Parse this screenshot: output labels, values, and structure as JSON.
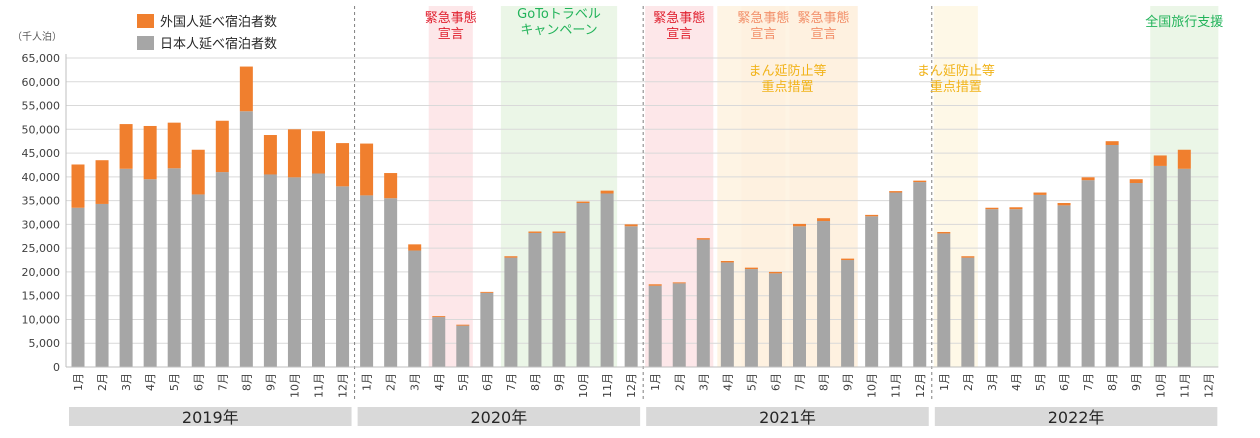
{
  "chart_data": {
    "type": "bar",
    "stacked": true,
    "unit_label": "（千人泊）",
    "ylim": [
      0,
      65000
    ],
    "y_ticks": [
      "0",
      "5,000",
      "10,000",
      "15,000",
      "20,000",
      "25,000",
      "30,000",
      "35,000",
      "40,000",
      "45,000",
      "50,000",
      "55,000",
      "60,000",
      "65,000"
    ],
    "y_tick_values": [
      0,
      5000,
      10000,
      15000,
      20000,
      25000,
      30000,
      35000,
      40000,
      45000,
      50000,
      55000,
      60000,
      65000
    ],
    "grid": true,
    "legend_position": "top-left",
    "legend": [
      {
        "label": "外国人延べ宿泊者数",
        "color": "#F07F2E"
      },
      {
        "label": "日本人延べ宿泊者数",
        "color": "#A6A6A6"
      }
    ],
    "years": [
      {
        "label": "2019年",
        "months": [
          "1月",
          "2月",
          "3月",
          "4月",
          "5月",
          "6月",
          "7月",
          "8月",
          "9月",
          "10月",
          "11月",
          "12月"
        ],
        "japanese": [
          33500,
          34300,
          41700,
          39500,
          41800,
          36300,
          41000,
          53800,
          40500,
          39900,
          40700,
          38000
        ],
        "foreign": [
          9100,
          9200,
          9400,
          11200,
          9600,
          9400,
          10800,
          9400,
          8300,
          10100,
          8900,
          9100
        ]
      },
      {
        "label": "2020年",
        "months": [
          "1月",
          "2月",
          "3月",
          "4月",
          "5月",
          "6月",
          "7月",
          "8月",
          "9月",
          "10月",
          "11月",
          "12月"
        ],
        "japanese": [
          36100,
          35500,
          24500,
          10500,
          8700,
          15600,
          23000,
          28200,
          28200,
          34500,
          36500,
          29600
        ],
        "foreign": [
          10900,
          5300,
          1300,
          200,
          200,
          200,
          300,
          300,
          300,
          300,
          600,
          400
        ]
      },
      {
        "label": "2021年",
        "months": [
          "1月",
          "2月",
          "3月",
          "4月",
          "5月",
          "6月",
          "7月",
          "8月",
          "9月",
          "10月",
          "11月",
          "12月"
        ],
        "japanese": [
          17100,
          17600,
          26800,
          22000,
          20600,
          19700,
          29600,
          30700,
          22500,
          31700,
          36700,
          38900
        ],
        "foreign": [
          300,
          200,
          300,
          300,
          300,
          300,
          500,
          600,
          300,
          300,
          300,
          300
        ]
      },
      {
        "label": "2022年",
        "months": [
          "1月",
          "2月",
          "3月",
          "4月",
          "5月",
          "6月",
          "7月",
          "8月",
          "9月",
          "10月",
          "11月",
          "12月"
        ],
        "japanese": [
          28100,
          23000,
          33200,
          33200,
          36200,
          34000,
          39300,
          46700,
          38700,
          42300,
          41700,
          null
        ],
        "foreign": [
          300,
          300,
          300,
          400,
          500,
          500,
          600,
          800,
          800,
          2200,
          4000,
          null
        ]
      }
    ],
    "annotations": [
      {
        "label_lines": [
          "緊急事態",
          "宣言"
        ],
        "color": "#E0202F",
        "bg": "#FDE3E5",
        "year": 1,
        "from": 3,
        "to": 4
      },
      {
        "label_lines": [
          "GoToトラベル",
          "キャンペーン"
        ],
        "color": "#22B35A",
        "bg": "#E7F4E3",
        "year": 1,
        "from": 6,
        "to": 10
      },
      {
        "label_lines": [
          "緊急事態",
          "宣言"
        ],
        "color": "#E0202F",
        "bg": "#FDE3E5",
        "year": 2,
        "from": 0,
        "to": 2
      },
      {
        "label_lines": [
          "緊急事態",
          "宣言"
        ],
        "color": "#F2906A",
        "bg": "#FCE9DB",
        "year": 2,
        "from": 4,
        "to": 5
      },
      {
        "label_lines": [
          "緊急事態",
          "宣言"
        ],
        "color": "#F2906A",
        "bg": "#FCE9DB",
        "year": 2,
        "from": 6,
        "to": 8
      },
      {
        "label_lines": [
          "まん延防止等",
          "重点措置"
        ],
        "color": "#F1B319",
        "bg": "#FEF2DF",
        "year": 2,
        "from": 3,
        "to": 8
      },
      {
        "label_lines": [
          "まん延防止等",
          "重点措置"
        ],
        "color": "#F1B319",
        "bg": "#FEF7E3",
        "year": 3,
        "from": 0,
        "to": 1
      },
      {
        "label_lines": [
          "全国旅行支援"
        ],
        "color": "#22B35A",
        "bg": "#E7F4E3",
        "year": 3,
        "from": 9,
        "to": 11
      }
    ]
  }
}
